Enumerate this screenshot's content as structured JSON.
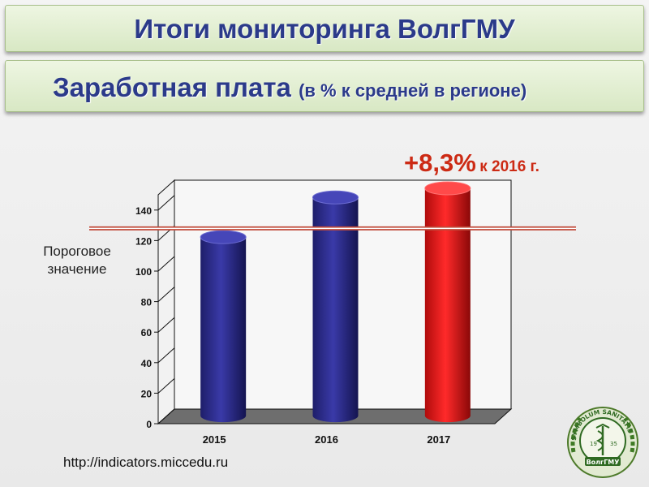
{
  "header": {
    "title": "Итоги мониторинга ВолгГМУ",
    "subtitle_main": "Заработная плата",
    "subtitle_note": "(в % к средней в регионе)"
  },
  "threshold_label_line1": "Пороговое",
  "threshold_label_line2": "значение",
  "annotation": {
    "change": "+8,3%",
    "rest": "к 2016 г."
  },
  "source_url": "http://indicators.miccedu.ru",
  "logo": {
    "ring_text": "SYMBOLUM SANITATIS",
    "name": "ВолгГМУ",
    "year_left": "19",
    "year_right": "35"
  },
  "colors": {
    "bar_blue": "#2a2a86",
    "bar_red": "#e01010",
    "threshold_line": "#c04a3a",
    "title_text": "#2b3a8a",
    "annotation": "#cc2a14"
  },
  "chart_data": {
    "type": "bar",
    "style": "3d-cylinder",
    "categories": [
      "2015",
      "2016",
      "2017"
    ],
    "values": [
      117,
      143,
      149
    ],
    "bar_colors": [
      "#2a2a86",
      "#2a2a86",
      "#e01010"
    ],
    "ylim": [
      0,
      150
    ],
    "yticks": [
      0,
      20,
      40,
      60,
      80,
      100,
      120,
      140
    ],
    "threshold": 128,
    "xlabel": "",
    "ylabel": "",
    "grid": false
  }
}
